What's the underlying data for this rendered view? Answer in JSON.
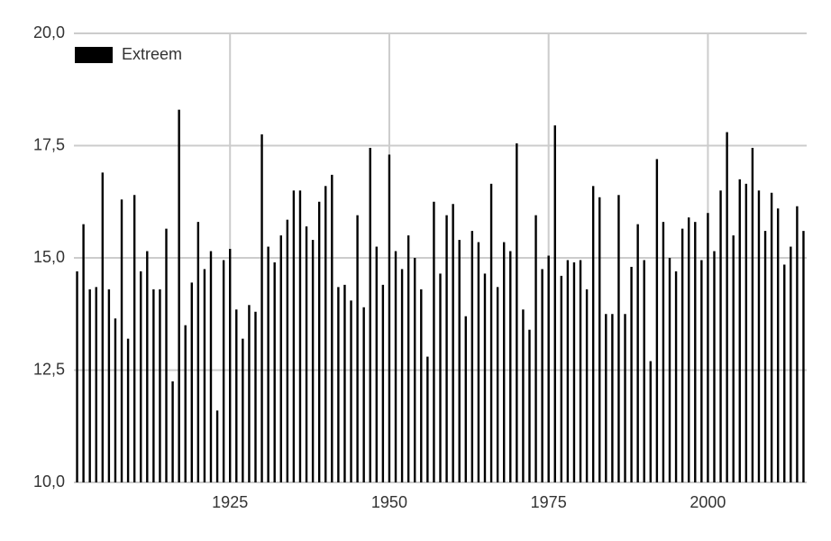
{
  "chart_data": {
    "type": "bar",
    "legend": "top-left",
    "grid": true,
    "series": [
      {
        "name": "Extreem",
        "color": "#000000",
        "values": [
          14.7,
          15.75,
          14.3,
          14.35,
          16.9,
          14.3,
          13.65,
          16.3,
          13.2,
          16.4,
          14.7,
          15.15,
          14.3,
          14.3,
          15.65,
          12.25,
          18.3,
          13.5,
          14.45,
          15.8,
          14.75,
          15.15,
          11.6,
          14.95,
          15.2,
          13.85,
          13.2,
          13.95,
          13.8,
          17.75,
          15.25,
          14.9,
          15.5,
          15.85,
          16.5,
          16.5,
          15.7,
          15.4,
          16.25,
          16.6,
          16.85,
          14.35,
          14.4,
          14.05,
          15.95,
          13.9,
          17.45,
          15.25,
          14.4,
          17.3,
          15.15,
          14.75,
          15.5,
          15.0,
          14.3,
          12.8,
          16.25,
          14.65,
          15.95,
          16.2,
          15.4,
          13.7,
          15.6,
          15.35,
          14.65,
          16.65,
          14.35,
          15.35,
          15.15,
          17.55,
          13.85,
          13.4,
          15.95,
          14.75,
          15.05,
          17.95,
          14.6,
          14.95,
          14.9,
          14.95,
          14.3,
          16.6,
          16.35,
          13.75,
          13.75,
          16.4,
          13.75,
          14.8,
          15.75,
          14.95,
          12.7,
          17.2,
          15.8,
          15.0,
          14.7,
          15.65,
          15.9,
          15.8,
          14.95,
          16.0,
          15.15,
          16.5,
          17.8,
          15.5,
          16.75,
          16.65,
          17.45,
          16.5,
          15.6,
          16.45,
          16.1,
          14.85,
          15.25,
          16.15,
          15.6
        ]
      }
    ],
    "x": [
      1901,
      1902,
      1903,
      1904,
      1905,
      1906,
      1907,
      1908,
      1909,
      1910,
      1911,
      1912,
      1913,
      1914,
      1915,
      1916,
      1917,
      1918,
      1919,
      1920,
      1921,
      1922,
      1923,
      1924,
      1925,
      1926,
      1927,
      1928,
      1929,
      1930,
      1931,
      1932,
      1933,
      1934,
      1935,
      1936,
      1937,
      1938,
      1939,
      1940,
      1941,
      1942,
      1943,
      1944,
      1945,
      1946,
      1947,
      1948,
      1949,
      1950,
      1951,
      1952,
      1953,
      1954,
      1955,
      1956,
      1957,
      1958,
      1959,
      1960,
      1961,
      1962,
      1963,
      1964,
      1965,
      1966,
      1967,
      1968,
      1969,
      1970,
      1971,
      1972,
      1973,
      1974,
      1975,
      1976,
      1977,
      1978,
      1979,
      1980,
      1981,
      1982,
      1983,
      1984,
      1985,
      1986,
      1987,
      1988,
      1989,
      1990,
      1991,
      1992,
      1993,
      1994,
      1995,
      1996,
      1997,
      1998,
      1999,
      2000,
      2001,
      2002,
      2003,
      2004,
      2005,
      2006,
      2007,
      2008,
      2009,
      2010,
      2011,
      2012,
      2013,
      2014,
      2015
    ],
    "xlim": [
      1900.5,
      2015.5
    ],
    "xticks": [
      1925,
      1950,
      1975,
      2000
    ],
    "ylim": [
      10,
      20
    ],
    "yticks": [
      {
        "value": 10,
        "label": "10,0"
      },
      {
        "value": 12.5,
        "label": "12,5"
      },
      {
        "value": 15,
        "label": "15,0"
      },
      {
        "value": 17.5,
        "label": "17,5"
      },
      {
        "value": 20,
        "label": "20,0"
      }
    ]
  }
}
